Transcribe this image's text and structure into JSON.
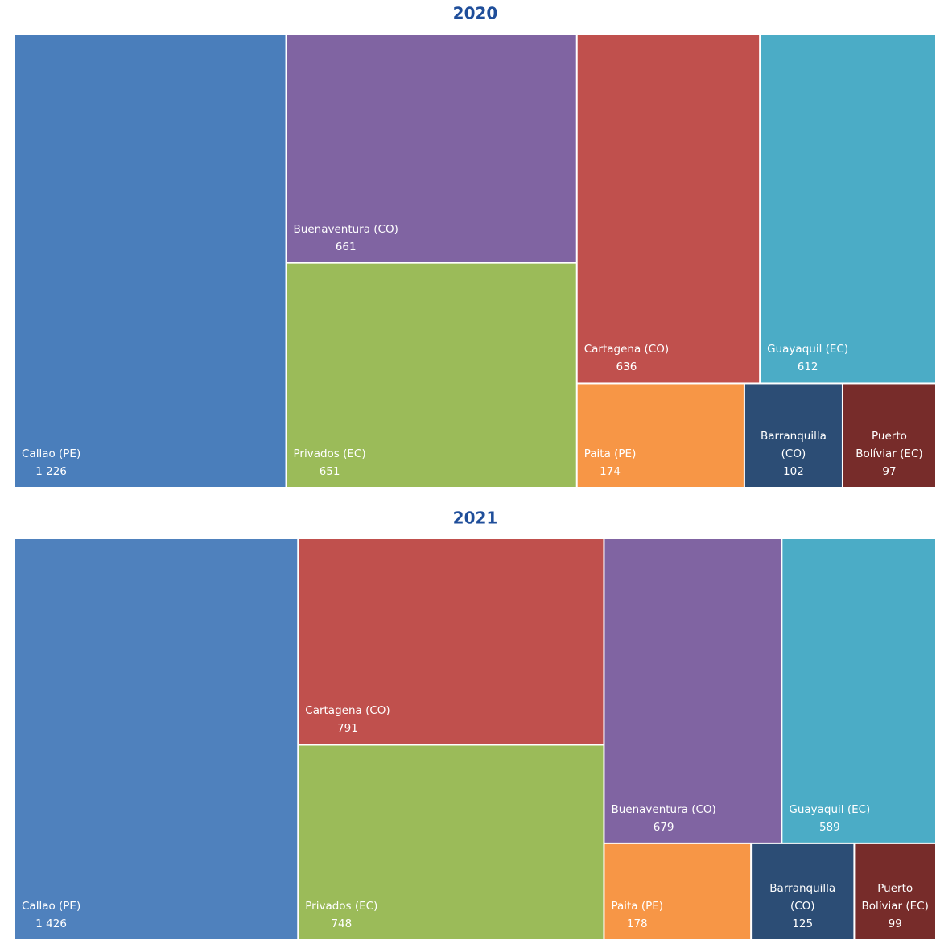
{
  "chart_data": [
    {
      "type": "treemap",
      "title": "2020",
      "categories": [
        "Callao (PE)",
        "Buenaventura (CO)",
        "Privados (EC)",
        "Cartagena (CO)",
        "Guayaquil (EC)",
        "Paita (PE)",
        "Barranquilla (CO)",
        "Puerto Bolíviar (EC)"
      ],
      "values": [
        1226,
        661,
        651,
        636,
        612,
        174,
        102,
        97
      ],
      "value_labels": [
        "1 226",
        "661",
        "651",
        "636",
        "612",
        "174",
        "102",
        "97"
      ],
      "colors": [
        "#4a7ebb",
        "#8064a2",
        "#9bbb59",
        "#c0504d",
        "#4bacc6",
        "#f79646",
        "#2c4d75",
        "#772c2a"
      ]
    },
    {
      "type": "treemap",
      "title": "2021",
      "categories": [
        "Callao (PE)",
        "Cartagena (CO)",
        "Privados (EC)",
        "Buenaventura (CO)",
        "Guayaquil (EC)",
        "Paita (PE)",
        "Barranquilla (CO)",
        "Puerto Bolíviar (EC)"
      ],
      "values": [
        1426,
        791,
        748,
        679,
        589,
        178,
        125,
        99
      ],
      "value_labels": [
        "1 426",
        "791",
        "748",
        "679",
        "589",
        "178",
        "125",
        "99"
      ],
      "colors": [
        "#4f81bd",
        "#c0504d",
        "#9bbb59",
        "#8064a2",
        "#4bacc6",
        "#f79646",
        "#2c4d75",
        "#772c2a"
      ]
    }
  ]
}
